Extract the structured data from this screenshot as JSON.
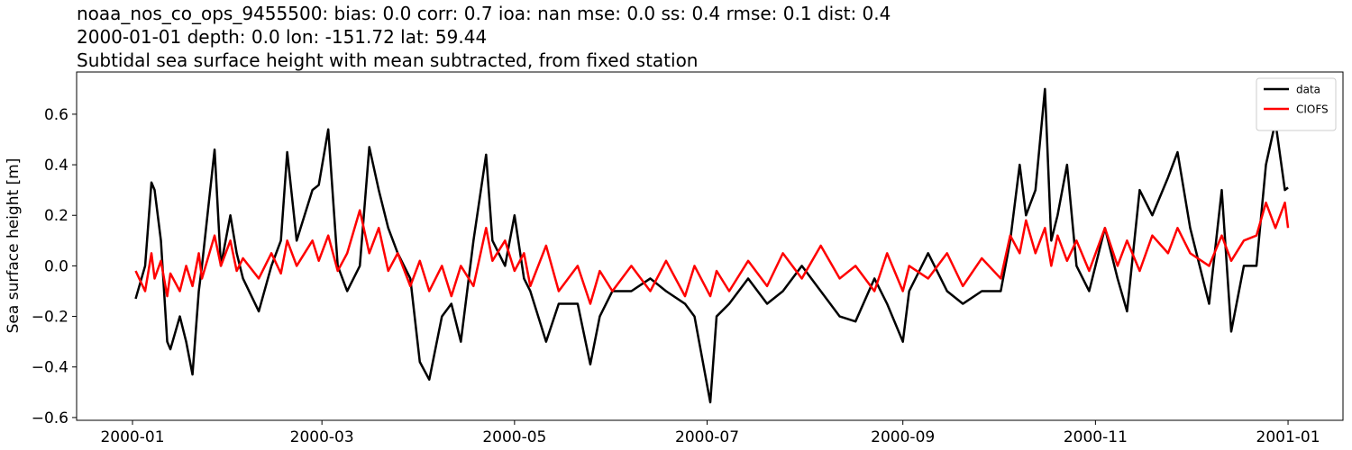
{
  "chart_data": {
    "type": "line",
    "title": "noaa_nos_co_ops_9455500: bias: 0.0  corr: 0.7  ioa: nan  mse: 0.0  ss: 0.4  rmse: 0.1  dist: 0.4",
    "subtitle": "2000-01-01 depth: 0.0 lon: -151.72 lat: 59.44",
    "description": "Subtidal sea surface height with mean subtracted, from fixed station",
    "ylabel": "Sea surface height [m]",
    "x": [
      1,
      4,
      6,
      7,
      9,
      11,
      12,
      15,
      17,
      19,
      21,
      22,
      26,
      28,
      31,
      33,
      35,
      40,
      44,
      47,
      49,
      52,
      57,
      59,
      62,
      65,
      68,
      72,
      75,
      78,
      81,
      84,
      88,
      91,
      94,
      98,
      101,
      104,
      108,
      112,
      114,
      118,
      121,
      124,
      126,
      131,
      135,
      141,
      145,
      148,
      152,
      158,
      164,
      169,
      175,
      178,
      183,
      185,
      189,
      195,
      201,
      206,
      212,
      218,
      224,
      229,
      235,
      239,
      244,
      246,
      252,
      258,
      263,
      269,
      275,
      278,
      281,
      283,
      286,
      289,
      291,
      293,
      296,
      299,
      303,
      308,
      312,
      315,
      319,
      323,
      328,
      331,
      335,
      341,
      345,
      348,
      352,
      356,
      359,
      362,
      365,
      366
    ],
    "series": [
      {
        "name": "data",
        "color": "#000000",
        "values": [
          -0.13,
          0.0,
          0.33,
          0.3,
          0.1,
          -0.3,
          -0.33,
          -0.2,
          -0.3,
          -0.43,
          -0.1,
          0.0,
          0.46,
          0.0,
          0.2,
          0.05,
          -0.05,
          -0.18,
          0.0,
          0.1,
          0.45,
          0.1,
          0.3,
          0.32,
          0.54,
          0.0,
          -0.1,
          0.0,
          0.47,
          0.3,
          0.15,
          0.05,
          -0.05,
          -0.38,
          -0.45,
          -0.2,
          -0.15,
          -0.3,
          0.1,
          0.44,
          0.1,
          0.0,
          0.2,
          -0.05,
          -0.1,
          -0.3,
          -0.15,
          -0.15,
          -0.39,
          -0.2,
          -0.1,
          -0.1,
          -0.05,
          -0.1,
          -0.15,
          -0.2,
          -0.54,
          -0.2,
          -0.15,
          -0.05,
          -0.15,
          -0.1,
          0.0,
          -0.1,
          -0.2,
          -0.22,
          -0.05,
          -0.15,
          -0.3,
          -0.1,
          0.05,
          -0.1,
          -0.15,
          -0.1,
          -0.1,
          0.1,
          0.4,
          0.2,
          0.3,
          0.7,
          0.1,
          0.2,
          0.4,
          0.0,
          -0.1,
          0.15,
          -0.05,
          -0.18,
          0.3,
          0.2,
          0.35,
          0.45,
          0.15,
          -0.15,
          0.3,
          -0.26,
          0.0,
          0.0,
          0.4,
          0.57,
          0.3,
          0.31
        ]
      },
      {
        "name": "CIOFS",
        "color": "#ff0000",
        "values": [
          -0.02,
          -0.1,
          0.05,
          -0.05,
          0.02,
          -0.12,
          -0.03,
          -0.1,
          0.0,
          -0.08,
          0.05,
          -0.05,
          0.12,
          0.0,
          0.1,
          -0.02,
          0.03,
          -0.05,
          0.05,
          -0.03,
          0.1,
          0.0,
          0.1,
          0.02,
          0.12,
          -0.02,
          0.05,
          0.22,
          0.05,
          0.15,
          -0.02,
          0.05,
          -0.08,
          0.02,
          -0.1,
          0.0,
          -0.12,
          0.0,
          -0.08,
          0.15,
          0.02,
          0.1,
          -0.02,
          0.05,
          -0.08,
          0.08,
          -0.1,
          0.0,
          -0.15,
          -0.02,
          -0.1,
          0.0,
          -0.1,
          0.02,
          -0.12,
          0.0,
          -0.12,
          -0.02,
          -0.1,
          0.02,
          -0.08,
          0.05,
          -0.05,
          0.08,
          -0.05,
          0.0,
          -0.1,
          0.05,
          -0.1,
          0.0,
          -0.05,
          0.05,
          -0.08,
          0.03,
          -0.05,
          0.12,
          0.05,
          0.18,
          0.05,
          0.15,
          0.0,
          0.12,
          0.02,
          0.1,
          -0.02,
          0.15,
          0.0,
          0.1,
          -0.02,
          0.12,
          0.05,
          0.15,
          0.05,
          0.0,
          0.12,
          0.02,
          0.1,
          0.12,
          0.25,
          0.15,
          0.25,
          0.15
        ]
      }
    ],
    "xlim": [
      -17.7,
      383.4
    ],
    "xticks": [
      {
        "value": 0,
        "label": "2000-01"
      },
      {
        "value": 60,
        "label": "2000-03"
      },
      {
        "value": 121,
        "label": "2000-05"
      },
      {
        "value": 182,
        "label": "2000-07"
      },
      {
        "value": 244,
        "label": "2000-09"
      },
      {
        "value": 305,
        "label": "2000-11"
      },
      {
        "value": 366,
        "label": "2001-01"
      }
    ],
    "ylim": [
      -0.611,
      0.767
    ],
    "yticks": [
      {
        "value": -0.6,
        "label": "−0.6"
      },
      {
        "value": -0.4,
        "label": "−0.4"
      },
      {
        "value": -0.2,
        "label": "−0.2"
      },
      {
        "value": 0,
        "label": "0.0"
      },
      0.2,
      0.4,
      0.6
    ],
    "legend": "upper right"
  }
}
